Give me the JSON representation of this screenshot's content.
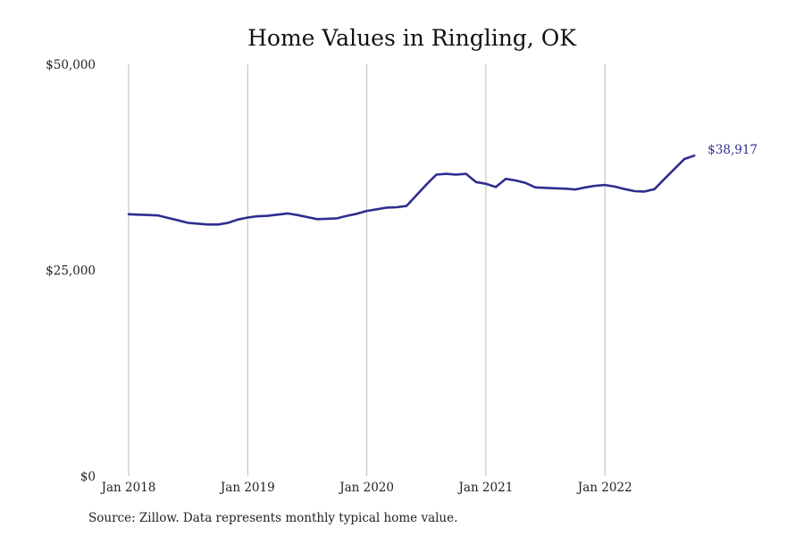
{
  "chart_data": {
    "type": "line",
    "title": "Home Values in Ringling, OK",
    "xlabel": "",
    "ylabel": "",
    "x_ticks": [
      "Jan 2018",
      "Jan 2019",
      "Jan 2020",
      "Jan 2021",
      "Jan 2022"
    ],
    "y_ticks": [
      "$0",
      "$25,000",
      "$50,000"
    ],
    "y_tick_values": [
      0,
      25000,
      50000
    ],
    "ylim": [
      0,
      50000
    ],
    "xlim": [
      "2018-01",
      "2022-10"
    ],
    "grid": "vertical",
    "colors": {
      "line": "#2e2e8f",
      "grid": "#bbbbbb"
    },
    "series": [
      {
        "dates": [
          "2018-01",
          "2018-02",
          "2018-03",
          "2018-04",
          "2018-05",
          "2018-06",
          "2018-07",
          "2018-08",
          "2018-09",
          "2018-10",
          "2018-11",
          "2018-12",
          "2019-01",
          "2019-02",
          "2019-03",
          "2019-04",
          "2019-05",
          "2019-06",
          "2019-07",
          "2019-08",
          "2019-09",
          "2019-10",
          "2019-11",
          "2019-12",
          "2020-01",
          "2020-02",
          "2020-03",
          "2020-04",
          "2020-05",
          "2020-06",
          "2020-07",
          "2020-08",
          "2020-09",
          "2020-10",
          "2020-11",
          "2020-12",
          "2021-01",
          "2021-02",
          "2021-03",
          "2021-04",
          "2021-05",
          "2021-06",
          "2021-07",
          "2021-08",
          "2021-09",
          "2021-10",
          "2021-11",
          "2021-12",
          "2022-01",
          "2022-02",
          "2022-03",
          "2022-04",
          "2022-05",
          "2022-06",
          "2022-07",
          "2022-08",
          "2022-09",
          "2022-10"
        ],
        "values": [
          31800,
          31750,
          31700,
          31650,
          31350,
          31050,
          30750,
          30650,
          30550,
          30550,
          30750,
          31150,
          31400,
          31550,
          31600,
          31750,
          31900,
          31700,
          31450,
          31200,
          31250,
          31300,
          31600,
          31850,
          32200,
          32400,
          32600,
          32650,
          32800,
          34100,
          35400,
          36600,
          36700,
          36600,
          36700,
          35700,
          35500,
          35100,
          36100,
          35900,
          35600,
          35050,
          35000,
          34950,
          34900,
          34800,
          35050,
          35250,
          35350,
          35150,
          34850,
          34600,
          34550,
          34850,
          36100,
          37300,
          38500,
          38917
        ]
      }
    ],
    "last_value_label": "$38,917",
    "source": "Source: Zillow. Data represents monthly typical home value."
  }
}
